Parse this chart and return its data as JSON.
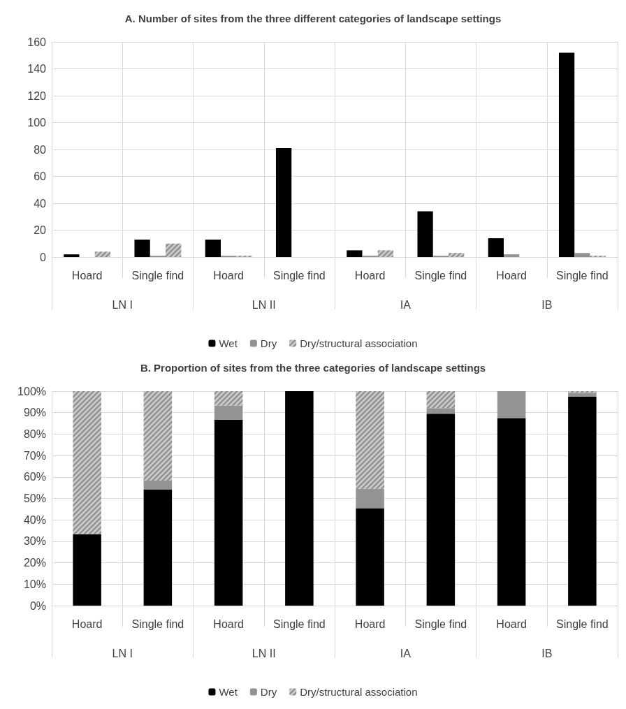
{
  "chart_data": [
    {
      "type": "bar",
      "title": "A. Number of sites from the three different categories of landscape settings",
      "categories": [
        "Hoard",
        "Single find",
        "Hoard",
        "Single find",
        "Hoard",
        "Single find",
        "Hoard",
        "Single find"
      ],
      "annotations": [
        "LN I",
        "LN II",
        "IA",
        "IB"
      ],
      "series": [
        {
          "name": "Wet",
          "color": "#000000",
          "values": [
            2,
            13,
            13,
            81,
            5,
            34,
            14,
            152
          ]
        },
        {
          "name": "Dry",
          "color": "#939393",
          "values": [
            0,
            1,
            1,
            0,
            1,
            1,
            2,
            3
          ]
        },
        {
          "name": "Dry/structural association",
          "color": "#c8c8c8",
          "values": [
            4,
            10,
            1,
            0,
            5,
            3,
            0,
            1
          ]
        }
      ],
      "ylim": [
        0,
        160
      ],
      "yticks": [
        0,
        20,
        40,
        60,
        80,
        100,
        120,
        140,
        160
      ],
      "grid": true,
      "legend": "bottom"
    },
    {
      "type": "bar",
      "stacked": true,
      "title": "B. Proportion of sites from the three categories of landscape settings",
      "categories": [
        "Hoard",
        "Single find",
        "Hoard",
        "Single find",
        "Hoard",
        "Single find",
        "Hoard",
        "Single find"
      ],
      "annotations": [
        "LN I",
        "LN II",
        "IA",
        "IB"
      ],
      "series": [
        {
          "name": "Wet",
          "color": "#000000",
          "values": [
            33.3,
            54.1,
            86.7,
            100,
            45.4,
            89.5,
            87.5,
            97.4
          ]
        },
        {
          "name": "Dry",
          "color": "#939393",
          "values": [
            0,
            4.2,
            6.6,
            0,
            9.1,
            2.6,
            12.5,
            1.9
          ]
        },
        {
          "name": "Dry/structural association",
          "color": "#c8c8c8",
          "values": [
            66.7,
            41.7,
            6.7,
            0,
            45.5,
            7.9,
            0,
            0.7
          ]
        }
      ],
      "ylim": [
        0,
        100
      ],
      "yticks": [
        {
          "value": 0,
          "label": "0%"
        },
        {
          "value": 10,
          "label": "10%"
        },
        {
          "value": 20,
          "label": "20%"
        },
        {
          "value": 30,
          "label": "30%"
        },
        {
          "value": 40,
          "label": "40%"
        },
        {
          "value": 50,
          "label": "50%"
        },
        {
          "value": 60,
          "label": "60%"
        },
        {
          "value": 70,
          "label": "70%"
        },
        {
          "value": 80,
          "label": "80%"
        },
        {
          "value": 90,
          "label": "90%"
        },
        {
          "value": 100,
          "label": "100%"
        }
      ],
      "grid": true,
      "legend": "bottom"
    }
  ]
}
